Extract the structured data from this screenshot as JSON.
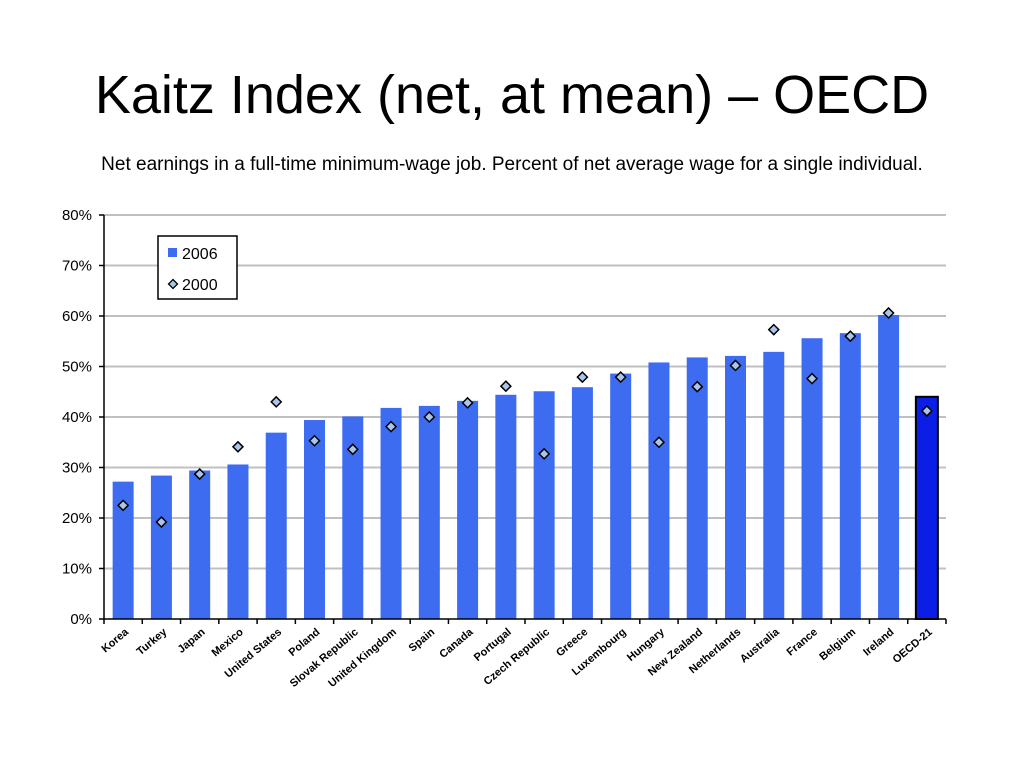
{
  "title": "Kaitz Index (net, at mean) – OECD",
  "subtitle": "Net earnings in a full-time minimum-wage job. Percent of net average wage for a single individual.",
  "colors": {
    "bar": "#3d6cf0",
    "bar_highlight": "#0a1ee6",
    "marker_fill": "#a9c6ea",
    "grid": "#c0c0c0",
    "axis": "#000000"
  },
  "chart_data": {
    "type": "bar",
    "categories": [
      "Korea",
      "Turkey",
      "Japan",
      "Mexico",
      "United States",
      "Poland",
      "Slovak Republic",
      "United Kingdom",
      "Spain",
      "Canada",
      "Portugal",
      "Czech Republic",
      "Greece",
      "Luxembourg",
      "Hungary",
      "New Zealand",
      "Netherlands",
      "Australia",
      "France",
      "Belgium",
      "Ireland",
      "OECD-21"
    ],
    "highlight_category": "OECD-21",
    "series": [
      {
        "name": "2006",
        "kind": "bar",
        "values": [
          27.2,
          28.4,
          29.4,
          30.6,
          36.9,
          39.4,
          40.1,
          41.8,
          42.2,
          43.2,
          44.4,
          45.1,
          45.9,
          48.6,
          50.8,
          51.8,
          52.1,
          52.9,
          55.6,
          56.6,
          60.2,
          44.0
        ]
      },
      {
        "name": "2000",
        "kind": "marker",
        "values": [
          22.5,
          19.2,
          28.7,
          34.1,
          43.0,
          35.3,
          33.6,
          38.1,
          40.0,
          42.8,
          46.1,
          32.7,
          47.9,
          47.9,
          35.0,
          46.0,
          50.2,
          57.3,
          47.6,
          56.0,
          60.6,
          41.2
        ]
      }
    ],
    "ylim": [
      0,
      80
    ],
    "yticks": [
      "0%",
      "10%",
      "20%",
      "30%",
      "40%",
      "50%",
      "60%",
      "70%",
      "80%"
    ],
    "ytick_values": [
      0,
      10,
      20,
      30,
      40,
      50,
      60,
      70,
      80
    ],
    "grid": true,
    "legend": {
      "position": "top-left",
      "entries": [
        "2006",
        "2000"
      ]
    }
  }
}
